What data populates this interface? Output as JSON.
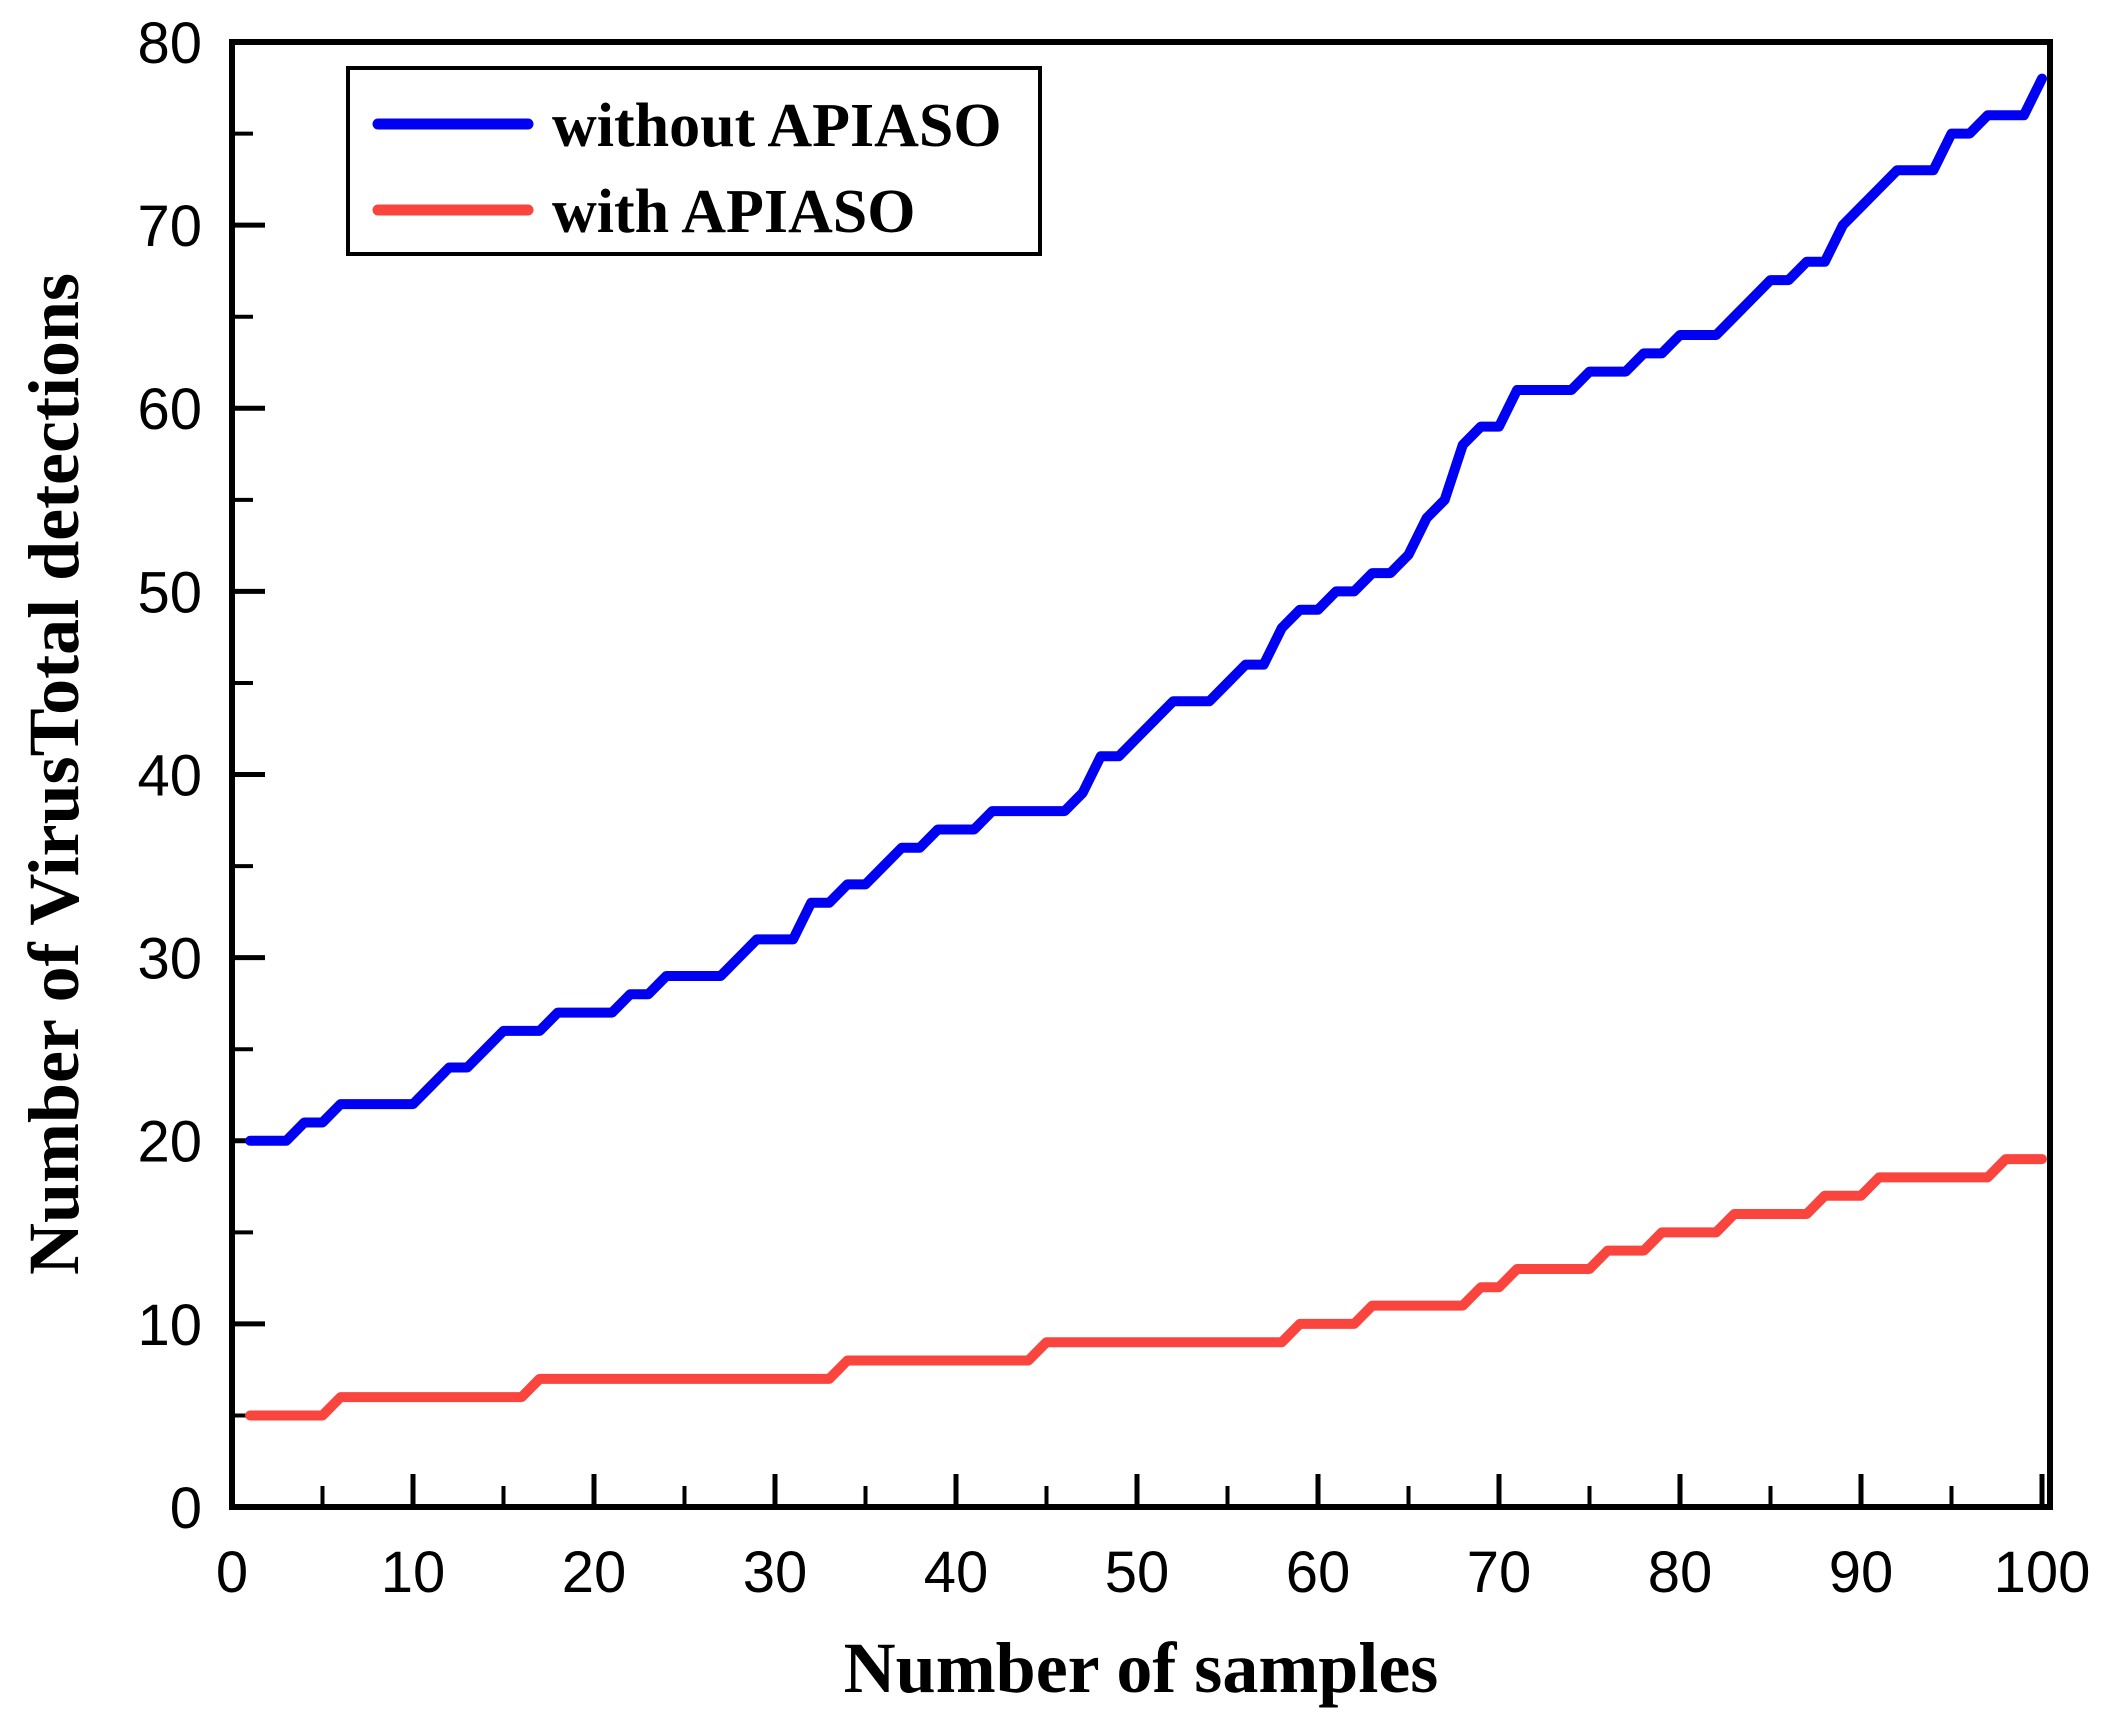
{
  "figure": {
    "background": "#ffffff",
    "axis_color": "#000000"
  },
  "chart_data": {
    "type": "line",
    "title": "",
    "xlabel": "Number of samples",
    "ylabel": "Number of VirusTotal detections",
    "xlim": [
      0,
      100
    ],
    "ylim": [
      0,
      80
    ],
    "xticks": [
      0,
      10,
      20,
      30,
      40,
      50,
      60,
      70,
      80,
      90,
      100
    ],
    "yticks": [
      0,
      10,
      20,
      30,
      40,
      50,
      60,
      70,
      80
    ],
    "minor_tick_step": 5,
    "grid": false,
    "legend_position": "top-left",
    "x_start": 1,
    "x_step": 1,
    "n_samples": 100,
    "series": [
      {
        "name": "without APIASO",
        "color": "#0000F2",
        "values": [
          20,
          20,
          20,
          21,
          21,
          22,
          22,
          22,
          22,
          22,
          23,
          24,
          24,
          25,
          26,
          26,
          26,
          27,
          27,
          27,
          27,
          28,
          28,
          29,
          29,
          29,
          29,
          30,
          31,
          31,
          31,
          33,
          33,
          34,
          34,
          35,
          36,
          36,
          37,
          37,
          37,
          38,
          38,
          38,
          38,
          38,
          39,
          41,
          41,
          42,
          43,
          44,
          44,
          44,
          45,
          46,
          46,
          48,
          49,
          49,
          50,
          50,
          51,
          51,
          52,
          54,
          55,
          58,
          59,
          59,
          61,
          61,
          61,
          61,
          62,
          62,
          62,
          63,
          63,
          64,
          64,
          64,
          65,
          66,
          67,
          67,
          68,
          68,
          70,
          71,
          72,
          73,
          73,
          73,
          75,
          75,
          76,
          76,
          76,
          78
        ]
      },
      {
        "name": "with APIASO",
        "color": "#FA453E",
        "values": [
          5,
          5,
          5,
          5,
          5,
          6,
          6,
          6,
          6,
          6,
          6,
          6,
          6,
          6,
          6,
          6,
          7,
          7,
          7,
          7,
          7,
          7,
          7,
          7,
          7,
          7,
          7,
          7,
          7,
          7,
          7,
          7,
          7,
          8,
          8,
          8,
          8,
          8,
          8,
          8,
          8,
          8,
          8,
          8,
          9,
          9,
          9,
          9,
          9,
          9,
          9,
          9,
          9,
          9,
          9,
          9,
          9,
          9,
          10,
          10,
          10,
          10,
          11,
          11,
          11,
          11,
          11,
          11,
          12,
          12,
          13,
          13,
          13,
          13,
          13,
          14,
          14,
          14,
          15,
          15,
          15,
          15,
          16,
          16,
          16,
          16,
          16,
          17,
          17,
          17,
          18,
          18,
          18,
          18,
          18,
          18,
          18,
          19,
          19,
          19
        ]
      }
    ]
  }
}
